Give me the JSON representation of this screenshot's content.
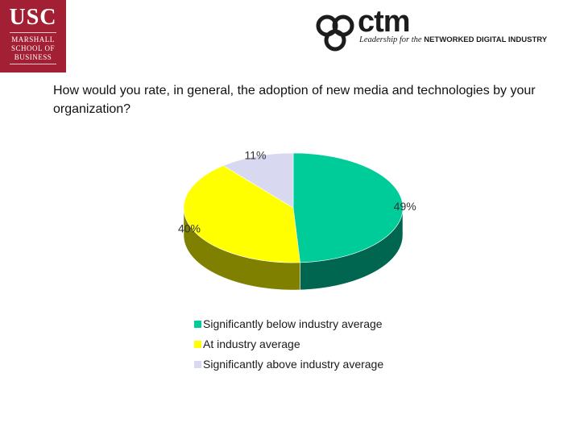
{
  "usc_logo": {
    "mark": "USC",
    "lines": [
      "MARSHALL",
      "SCHOOL OF",
      "BUSINESS"
    ]
  },
  "ctm_logo": {
    "word": "ctm",
    "tagline_prefix": "Leadership for the",
    "tagline_bold": "NETWORKED DIGITAL INDUSTRY"
  },
  "question": "How would you rate, in general, the adoption of new media and technologies by your organization?",
  "chart_data": {
    "type": "pie",
    "title": "",
    "three_d": true,
    "categories": [
      "Significantly below industry average",
      "At industry average",
      "Significantly above industry average"
    ],
    "values": [
      49,
      40,
      11
    ],
    "labels": [
      "49%",
      "40%",
      "11%"
    ],
    "colors": [
      "#00cc99",
      "#ffff00",
      "#d8d8f0"
    ],
    "side_colors": [
      "#006650",
      "#808000",
      "#6c6c78"
    ],
    "legend_position": "bottom"
  }
}
